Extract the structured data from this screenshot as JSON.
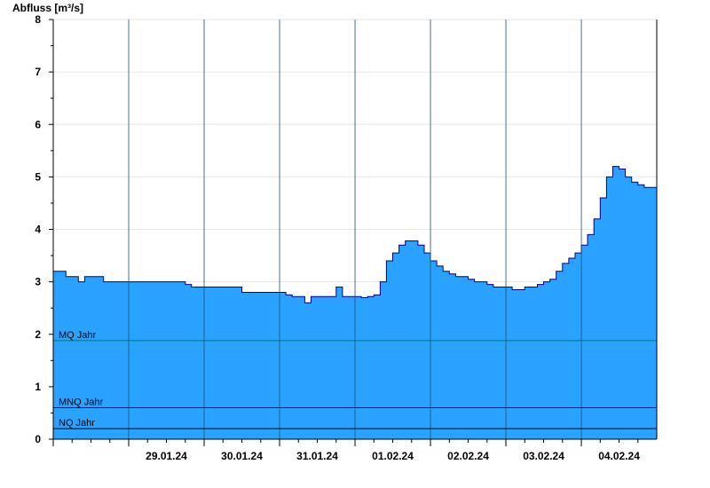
{
  "chart_data": {
    "type": "area",
    "ylabel": "Abfluss [m³/s]",
    "ylim": [
      0,
      8
    ],
    "yticks": [
      0,
      1,
      2,
      3,
      4,
      5,
      6,
      7,
      8
    ],
    "x_day_labels": [
      "29.01.24",
      "30.01.24",
      "31.01.24",
      "01.02.24",
      "02.02.24",
      "03.02.24",
      "04.02.24"
    ],
    "xlim": [
      "28.01.24 00:00",
      "04.02.24 23:59"
    ],
    "grid": true,
    "fill_color": "#29a3ff",
    "line_color": "#00007f",
    "reference_lines": [
      {
        "label": "MQ Jahr",
        "value": 1.88,
        "color": "#008040"
      },
      {
        "label": "MNQ Jahr",
        "value": 0.6,
        "color": "#000000"
      },
      {
        "label": "NQ Jahr",
        "value": 0.2,
        "color": "#000000"
      }
    ],
    "series": [
      {
        "x": [
          "28.01.24 00:00",
          "28.01.24 02:00",
          "28.01.24 04:00",
          "28.01.24 06:00",
          "28.01.24 08:00",
          "28.01.24 10:00",
          "28.01.24 12:00",
          "28.01.24 14:00",
          "28.01.24 16:00",
          "28.01.24 20:00",
          "29.01.24 00:00",
          "29.01.24 06:00",
          "29.01.24 12:00",
          "29.01.24 18:00",
          "29.01.24 20:00",
          "29.01.24 22:00",
          "30.01.24 00:00",
          "30.01.24 06:00",
          "30.01.24 12:00",
          "30.01.24 14:00",
          "30.01.24 18:00",
          "31.01.24 00:00",
          "31.01.24 02:00",
          "31.01.24 04:00",
          "31.01.24 06:00",
          "31.01.24 08:00",
          "31.01.24 10:00",
          "31.01.24 12:00",
          "31.01.24 14:00",
          "31.01.24 16:00",
          "31.01.24 18:00",
          "31.01.24 20:00",
          "31.01.24 22:00",
          "01.02.24 00:00",
          "01.02.24 02:00",
          "01.02.24 04:00",
          "01.02.24 06:00",
          "01.02.24 08:00",
          "01.02.24 10:00",
          "01.02.24 12:00",
          "01.02.24 14:00",
          "01.02.24 16:00",
          "01.02.24 18:00",
          "01.02.24 20:00",
          "01.02.24 22:00",
          "02.02.24 00:00",
          "02.02.24 02:00",
          "02.02.24 04:00",
          "02.02.24 06:00",
          "02.02.24 08:00",
          "02.02.24 10:00",
          "02.02.24 12:00",
          "02.02.24 14:00",
          "02.02.24 16:00",
          "02.02.24 18:00",
          "02.02.24 20:00",
          "02.02.24 22:00",
          "03.02.24 00:00",
          "03.02.24 02:00",
          "03.02.24 04:00",
          "03.02.24 06:00",
          "03.02.24 08:00",
          "03.02.24 10:00",
          "03.02.24 12:00",
          "03.02.24 14:00",
          "03.02.24 16:00",
          "03.02.24 18:00",
          "03.02.24 20:00",
          "03.02.24 22:00",
          "04.02.24 00:00",
          "04.02.24 02:00",
          "04.02.24 04:00",
          "04.02.24 06:00",
          "04.02.24 08:00",
          "04.02.24 10:00",
          "04.02.24 12:00",
          "04.02.24 14:00",
          "04.02.24 16:00",
          "04.02.24 18:00",
          "04.02.24 20:00",
          "04.02.24 22:00",
          "04.02.24 23:59"
        ],
        "values": [
          3.2,
          3.2,
          3.1,
          3.1,
          3.0,
          3.1,
          3.1,
          3.1,
          3.0,
          3.0,
          3.0,
          3.0,
          3.0,
          2.95,
          2.9,
          2.9,
          2.9,
          2.9,
          2.8,
          2.8,
          2.8,
          2.8,
          2.75,
          2.72,
          2.72,
          2.6,
          2.72,
          2.72,
          2.72,
          2.72,
          2.9,
          2.72,
          2.72,
          2.72,
          2.7,
          2.72,
          2.75,
          3.0,
          3.4,
          3.55,
          3.7,
          3.78,
          3.78,
          3.7,
          3.55,
          3.4,
          3.3,
          3.2,
          3.15,
          3.1,
          3.1,
          3.05,
          3.0,
          3.0,
          2.95,
          2.9,
          2.9,
          2.9,
          2.85,
          2.85,
          2.9,
          2.9,
          2.95,
          3.0,
          3.05,
          3.2,
          3.35,
          3.45,
          3.55,
          3.7,
          3.9,
          4.2,
          4.6,
          5.0,
          5.2,
          5.15,
          5.0,
          4.9,
          4.85,
          4.8,
          4.8,
          4.8
        ]
      }
    ]
  }
}
